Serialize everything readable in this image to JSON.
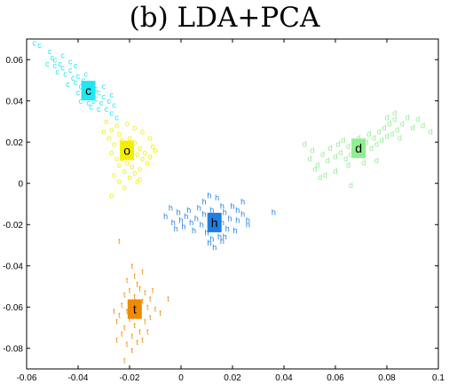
{
  "chart_data": {
    "type": "scatter",
    "title": "(b) LDA+PCA",
    "xlabel": "",
    "ylabel": "",
    "xlim": [
      -0.06,
      0.1
    ],
    "ylim": [
      -0.09,
      0.07
    ],
    "x_ticks": [
      -0.06,
      -0.04,
      -0.02,
      0,
      0.02,
      0.04,
      0.06,
      0.08,
      0.1
    ],
    "x_tick_labels": [
      "-0.06",
      "-0.04",
      "-0.02",
      "0",
      "0.02",
      "0.04",
      "0.06",
      "0.08",
      "0.1"
    ],
    "y_ticks": [
      -0.08,
      -0.06,
      -0.04,
      -0.02,
      0,
      0.02,
      0.04,
      0.06
    ],
    "y_tick_labels": [
      "-0.08",
      "-0.06",
      "-0.04",
      "-0.02",
      "0",
      "0.02",
      "0.04",
      "0.06"
    ],
    "grid": false,
    "series": [
      {
        "name": "c",
        "marker": "c",
        "color": "#22e6f0",
        "centroid": [
          -0.036,
          0.045
        ],
        "points": [
          [
            -0.057,
            0.068
          ],
          [
            -0.055,
            0.067
          ],
          [
            -0.051,
            0.064
          ],
          [
            -0.049,
            0.06
          ],
          [
            -0.047,
            0.058
          ],
          [
            -0.049,
            0.057
          ],
          [
            -0.046,
            0.056
          ],
          [
            -0.045,
            0.053
          ],
          [
            -0.043,
            0.055
          ],
          [
            -0.042,
            0.051
          ],
          [
            -0.041,
            0.049
          ],
          [
            -0.04,
            0.052
          ],
          [
            -0.039,
            0.047
          ],
          [
            -0.038,
            0.05
          ],
          [
            -0.037,
            0.046
          ],
          [
            -0.035,
            0.043
          ],
          [
            -0.034,
            0.048
          ],
          [
            -0.033,
            0.041
          ],
          [
            -0.032,
            0.044
          ],
          [
            -0.031,
            0.039
          ],
          [
            -0.03,
            0.042
          ],
          [
            -0.029,
            0.036
          ],
          [
            -0.028,
            0.04
          ],
          [
            -0.027,
            0.034
          ],
          [
            -0.026,
            0.038
          ],
          [
            -0.038,
            0.042
          ],
          [
            -0.036,
            0.039
          ],
          [
            -0.04,
            0.044
          ],
          [
            -0.044,
            0.048
          ],
          [
            -0.048,
            0.054
          ],
          [
            -0.05,
            0.061
          ],
          [
            -0.052,
            0.058
          ],
          [
            -0.046,
            0.062
          ],
          [
            -0.039,
            0.04
          ],
          [
            -0.035,
            0.037
          ],
          [
            -0.033,
            0.046
          ],
          [
            -0.03,
            0.047
          ],
          [
            -0.027,
            0.043
          ],
          [
            -0.025,
            0.032
          ],
          [
            -0.043,
            0.059
          ],
          [
            -0.041,
            0.057
          ],
          [
            -0.037,
            0.053
          ],
          [
            -0.032,
            0.036
          ],
          [
            -0.034,
            0.04
          ]
        ]
      },
      {
        "name": "o",
        "marker": "o",
        "color": "#f2f000",
        "centroid": [
          -0.021,
          0.016
        ],
        "points": [
          [
            -0.029,
            0.03
          ],
          [
            -0.027,
            0.026
          ],
          [
            -0.025,
            0.028
          ],
          [
            -0.024,
            0.024
          ],
          [
            -0.023,
            0.021
          ],
          [
            -0.022,
            0.019
          ],
          [
            -0.021,
            0.018
          ],
          [
            -0.02,
            0.022
          ],
          [
            -0.019,
            0.016
          ],
          [
            -0.018,
            0.02
          ],
          [
            -0.017,
            0.014
          ],
          [
            -0.016,
            0.017
          ],
          [
            -0.015,
            0.012
          ],
          [
            -0.014,
            0.015
          ],
          [
            -0.013,
            0.01
          ],
          [
            -0.012,
            0.013
          ],
          [
            -0.011,
            0.018
          ],
          [
            -0.023,
            0.012
          ],
          [
            -0.024,
            0.009
          ],
          [
            -0.022,
            0.006
          ],
          [
            -0.021,
            0.01
          ],
          [
            -0.019,
            0.008
          ],
          [
            -0.018,
            0.005
          ],
          [
            -0.02,
            0.003
          ],
          [
            -0.017,
            0.001
          ],
          [
            -0.016,
            0.007
          ],
          [
            -0.026,
            0.019
          ],
          [
            -0.027,
            0.015
          ],
          [
            -0.025,
            0.012
          ],
          [
            -0.028,
            0.022
          ],
          [
            -0.03,
            0.025
          ],
          [
            -0.026,
            0.004
          ],
          [
            -0.024,
            0.001
          ],
          [
            -0.022,
            -0.002
          ],
          [
            -0.027,
            -0.006
          ],
          [
            -0.012,
            0.022
          ],
          [
            -0.01,
            0.016
          ],
          [
            -0.015,
            0.025
          ],
          [
            -0.018,
            0.027
          ],
          [
            -0.021,
            0.029
          ],
          [
            -0.016,
            0.002
          ]
        ]
      },
      {
        "name": "d",
        "marker": "d",
        "color": "#90ee90",
        "centroid": [
          0.069,
          0.017
        ],
        "points": [
          [
            0.048,
            0.019
          ],
          [
            0.05,
            0.012
          ],
          [
            0.051,
            0.016
          ],
          [
            0.053,
            0.009
          ],
          [
            0.055,
            0.014
          ],
          [
            0.057,
            0.011
          ],
          [
            0.058,
            0.017
          ],
          [
            0.06,
            0.013
          ],
          [
            0.061,
            0.019
          ],
          [
            0.062,
            0.015
          ],
          [
            0.063,
            0.021
          ],
          [
            0.064,
            0.012
          ],
          [
            0.065,
            0.018
          ],
          [
            0.066,
            0.014
          ],
          [
            0.067,
            0.02
          ],
          [
            0.068,
            0.016
          ],
          [
            0.069,
            0.022
          ],
          [
            0.07,
            0.018
          ],
          [
            0.071,
            0.014
          ],
          [
            0.072,
            0.02
          ],
          [
            0.073,
            0.024
          ],
          [
            0.074,
            0.017
          ],
          [
            0.075,
            0.022
          ],
          [
            0.076,
            0.019
          ],
          [
            0.077,
            0.025
          ],
          [
            0.078,
            0.021
          ],
          [
            0.079,
            0.027
          ],
          [
            0.08,
            0.023
          ],
          [
            0.081,
            0.029
          ],
          [
            0.082,
            0.024
          ],
          [
            0.083,
            0.031
          ],
          [
            0.084,
            0.026
          ],
          [
            0.085,
            0.022
          ],
          [
            0.086,
            0.029
          ],
          [
            0.088,
            0.032
          ],
          [
            0.09,
            0.027
          ],
          [
            0.092,
            0.031
          ],
          [
            0.094,
            0.028
          ],
          [
            0.097,
            0.025
          ],
          [
            0.083,
            0.034
          ],
          [
            0.08,
            0.032
          ],
          [
            0.06,
            0.006
          ],
          [
            0.056,
            0.004
          ],
          [
            0.052,
            0.007
          ],
          [
            0.054,
            0.003
          ],
          [
            0.066,
            -0.001
          ],
          [
            0.065,
            0.009
          ],
          [
            0.071,
            0.01
          ],
          [
            0.076,
            0.011
          ]
        ]
      },
      {
        "name": "h",
        "marker": "h",
        "color": "#1f7fe0",
        "centroid": [
          0.013,
          -0.019
        ],
        "points": [
          [
            -0.006,
            -0.016
          ],
          [
            -0.004,
            -0.012
          ],
          [
            -0.003,
            -0.019
          ],
          [
            -0.002,
            -0.022
          ],
          [
            -0.001,
            -0.014
          ],
          [
            0.0,
            -0.018
          ],
          [
            0.001,
            -0.021
          ],
          [
            0.002,
            -0.016
          ],
          [
            0.003,
            -0.013
          ],
          [
            0.004,
            -0.019
          ],
          [
            0.005,
            -0.023
          ],
          [
            0.006,
            -0.017
          ],
          [
            0.007,
            -0.012
          ],
          [
            0.008,
            -0.02
          ],
          [
            0.009,
            -0.015
          ],
          [
            0.01,
            -0.024
          ],
          [
            0.011,
            -0.018
          ],
          [
            0.012,
            -0.013
          ],
          [
            0.013,
            -0.021
          ],
          [
            0.014,
            -0.016
          ],
          [
            0.015,
            -0.026
          ],
          [
            0.016,
            -0.019
          ],
          [
            0.017,
            -0.014
          ],
          [
            0.018,
            -0.022
          ],
          [
            0.019,
            -0.017
          ],
          [
            0.02,
            -0.011
          ],
          [
            0.021,
            -0.023
          ],
          [
            0.022,
            -0.018
          ],
          [
            0.024,
            -0.015
          ],
          [
            0.026,
            -0.02
          ],
          [
            0.011,
            -0.029
          ],
          [
            0.013,
            -0.031
          ],
          [
            0.012,
            -0.027
          ],
          [
            0.016,
            -0.028
          ],
          [
            0.009,
            -0.009
          ],
          [
            0.011,
            -0.006
          ],
          [
            0.014,
            -0.007
          ],
          [
            0.016,
            -0.011
          ],
          [
            0.022,
            -0.013
          ],
          [
            0.024,
            -0.009
          ],
          [
            0.036,
            -0.014
          ],
          [
            0.026,
            -0.018
          ],
          [
            0.017,
            -0.026
          ]
        ]
      },
      {
        "name": "t",
        "marker": "t",
        "color": "#f08a00",
        "centroid": [
          -0.018,
          -0.061
        ],
        "points": [
          [
            -0.024,
            -0.028
          ],
          [
            -0.019,
            -0.04
          ],
          [
            -0.021,
            -0.047
          ],
          [
            -0.017,
            -0.049
          ],
          [
            -0.02,
            -0.052
          ],
          [
            -0.016,
            -0.051
          ],
          [
            -0.018,
            -0.055
          ],
          [
            -0.022,
            -0.054
          ],
          [
            -0.014,
            -0.053
          ],
          [
            -0.019,
            -0.058
          ],
          [
            -0.015,
            -0.057
          ],
          [
            -0.023,
            -0.059
          ],
          [
            -0.012,
            -0.056
          ],
          [
            -0.017,
            -0.061
          ],
          [
            -0.021,
            -0.062
          ],
          [
            -0.013,
            -0.06
          ],
          [
            -0.016,
            -0.064
          ],
          [
            -0.02,
            -0.066
          ],
          [
            -0.024,
            -0.064
          ],
          [
            -0.014,
            -0.067
          ],
          [
            -0.018,
            -0.069
          ],
          [
            -0.022,
            -0.07
          ],
          [
            -0.016,
            -0.072
          ],
          [
            -0.019,
            -0.074
          ],
          [
            -0.023,
            -0.073
          ],
          [
            -0.017,
            -0.077
          ],
          [
            -0.021,
            -0.078
          ],
          [
            -0.015,
            -0.076
          ],
          [
            -0.019,
            -0.081
          ],
          [
            -0.022,
            -0.086
          ],
          [
            -0.01,
            -0.061
          ],
          [
            -0.008,
            -0.063
          ],
          [
            -0.005,
            -0.056
          ],
          [
            -0.011,
            -0.052
          ],
          [
            -0.025,
            -0.067
          ],
          [
            -0.026,
            -0.062
          ],
          [
            -0.012,
            -0.065
          ],
          [
            -0.013,
            -0.072
          ],
          [
            -0.025,
            -0.076
          ],
          [
            -0.018,
            -0.045
          ],
          [
            -0.015,
            -0.043
          ]
        ]
      }
    ]
  }
}
